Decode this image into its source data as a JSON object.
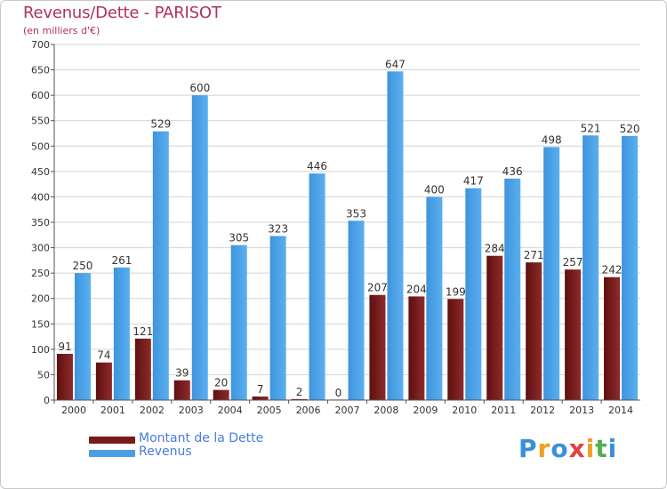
{
  "title": "Revenus/Dette - PARISOT",
  "subtitle": "(en milliers d'€)",
  "logo": {
    "text": "Proxiti",
    "letters": [
      "P",
      "r",
      "o",
      "x",
      "i",
      "t",
      "i"
    ],
    "colors": [
      "#3a8fd8",
      "#f0a020",
      "#3a8fd8",
      "#e04040",
      "#f0a020",
      "#50b050",
      "#3a8fd8"
    ]
  },
  "chart_data": {
    "type": "bar",
    "categories": [
      "2000",
      "2001",
      "2002",
      "2003",
      "2004",
      "2005",
      "2006",
      "2007",
      "2008",
      "2009",
      "2010",
      "2011",
      "2012",
      "2013",
      "2014"
    ],
    "series": [
      {
        "name": "Montant de la Dette",
        "color": "#7a1a1a",
        "values": [
          91,
          74,
          121,
          39,
          20,
          7,
          2,
          0,
          207,
          204,
          199,
          284,
          271,
          257,
          242
        ]
      },
      {
        "name": "Revenus",
        "color": "#4a9fe3",
        "values": [
          250,
          261,
          529,
          600,
          305,
          323,
          446,
          353,
          647,
          400,
          417,
          436,
          498,
          521,
          520
        ]
      }
    ],
    "ylim": [
      0,
      700
    ],
    "yticks": [
      0,
      50,
      100,
      150,
      200,
      250,
      300,
      350,
      400,
      450,
      500,
      550,
      600,
      650,
      700
    ],
    "grid": true,
    "legend": "bottom-left"
  }
}
